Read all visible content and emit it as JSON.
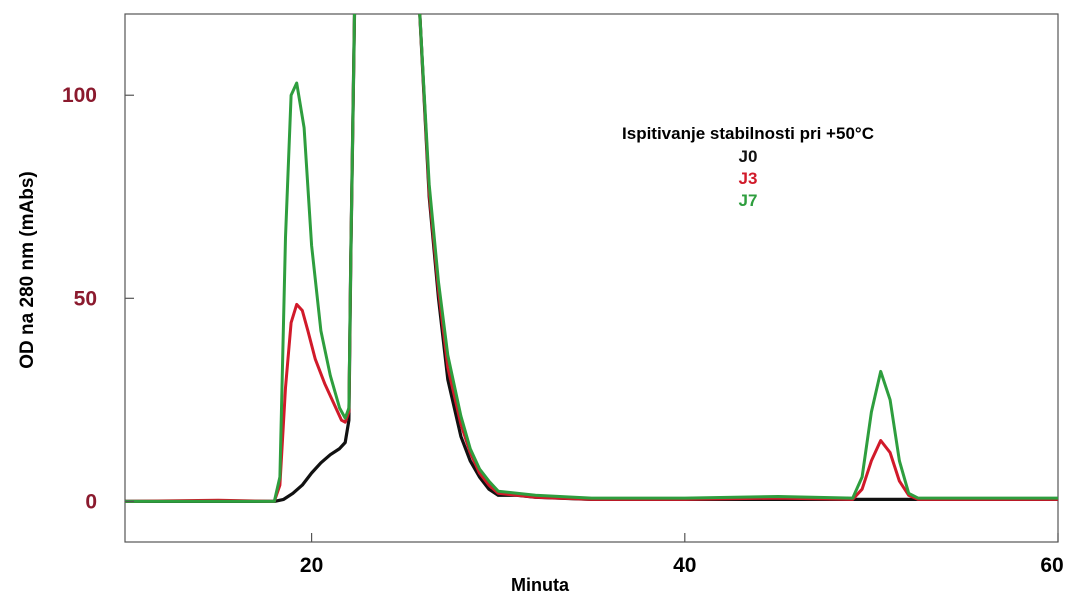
{
  "chart_data": {
    "type": "line",
    "title": "Ispitivanje stabilnosti pri +50°C",
    "xlabel": "Minuta",
    "ylabel": "OD na 280 nm (mAbs)",
    "xlim": [
      10,
      60
    ],
    "ylim": [
      -10,
      120
    ],
    "x_ticks": [
      20,
      40,
      60
    ],
    "y_ticks": [
      0,
      50,
      100
    ],
    "x_tick_labels": [
      "20",
      "40",
      "60"
    ],
    "y_tick_labels": [
      "0",
      "50",
      "100"
    ],
    "grid": false,
    "legend_position": "top-right",
    "colors": {
      "y_tick_labels": "#8b1a2e",
      "x_tick_labels": "#000000",
      "J0": "#111111",
      "J3": "#d11a2a",
      "J7": "#2e9e3e"
    },
    "series": [
      {
        "name": "J0",
        "color": "#111111",
        "x": [
          10,
          15,
          18,
          18.5,
          19,
          19.5,
          20,
          20.5,
          21,
          21.5,
          21.8,
          22,
          22.1,
          22.3,
          22.5,
          23,
          24,
          25.3,
          25.8,
          26.3,
          26.8,
          27.3,
          28,
          28.5,
          29,
          29.5,
          30,
          31,
          32,
          35,
          40,
          45,
          50,
          55,
          60
        ],
        "y": [
          0,
          0,
          0,
          0.5,
          2,
          4,
          7,
          9.5,
          11.5,
          13,
          14.5,
          20,
          60,
          120,
          125,
          125,
          125,
          125,
          120,
          75,
          50,
          30,
          16,
          10,
          6,
          3,
          1.5,
          1.5,
          1,
          0.5,
          0.5,
          0.5,
          0.5,
          0.5,
          0.5
        ]
      },
      {
        "name": "J3",
        "color": "#d11a2a",
        "x": [
          10,
          15,
          18,
          18.3,
          18.6,
          18.9,
          19.2,
          19.5,
          19.8,
          20.2,
          20.7,
          21.2,
          21.6,
          21.8,
          22,
          22.1,
          22.3,
          22.5,
          23,
          24,
          25.3,
          25.8,
          26.3,
          26.8,
          27.3,
          28,
          28.5,
          29,
          29.5,
          30,
          31,
          32,
          35,
          40,
          45,
          49,
          49.5,
          50,
          50.5,
          51,
          51.5,
          52,
          52.5,
          55,
          60
        ],
        "y": [
          0,
          0.3,
          0,
          4,
          28,
          44,
          48.5,
          47,
          42,
          35,
          29,
          24,
          20,
          19.5,
          22,
          60,
          120,
          125,
          125,
          125,
          125,
          120,
          76,
          52,
          33,
          19,
          12,
          7,
          4,
          2,
          1.5,
          1,
          0.5,
          0.5,
          0.8,
          0.5,
          3,
          10,
          15,
          12,
          5,
          1.5,
          0.5,
          0.5,
          0.5
        ]
      },
      {
        "name": "J7",
        "color": "#2e9e3e",
        "x": [
          10,
          15,
          18,
          18.3,
          18.6,
          18.9,
          19.2,
          19.6,
          20,
          20.5,
          21,
          21.5,
          21.8,
          22,
          22.1,
          22.3,
          22.5,
          23,
          24,
          25.3,
          25.8,
          26.3,
          26.8,
          27.3,
          28,
          28.5,
          29,
          29.5,
          30,
          31,
          32,
          35,
          40,
          45,
          49,
          49.5,
          50,
          50.5,
          51,
          51.5,
          52,
          52.5,
          55,
          60
        ],
        "y": [
          0,
          0,
          0,
          6,
          65,
          100,
          103,
          92,
          63,
          42,
          31,
          23,
          20.5,
          23,
          60,
          120,
          125,
          125,
          125,
          125,
          120,
          78,
          54,
          36,
          21,
          13,
          8,
          5,
          2.5,
          2,
          1.5,
          0.8,
          0.8,
          1.2,
          0.8,
          6,
          22,
          32,
          25,
          10,
          2,
          0.8,
          0.8,
          0.8
        ]
      }
    ]
  }
}
